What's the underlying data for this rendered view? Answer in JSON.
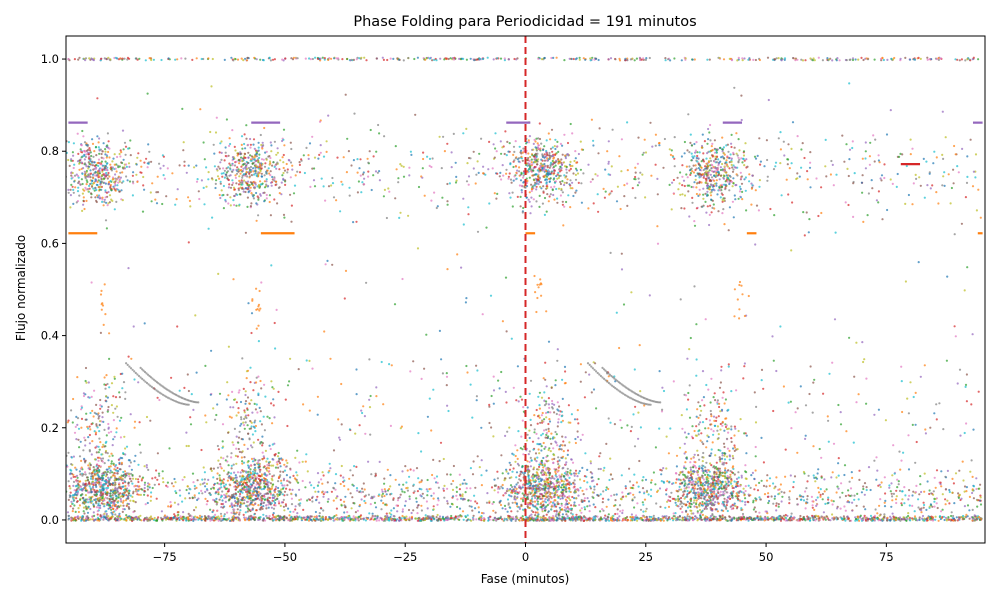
{
  "chart_data": {
    "type": "scatter",
    "title": "Phase Folding para Periodicidad = 191 minutos",
    "xlabel": "Fase (minutos)",
    "ylabel": "Flujo normalizado",
    "xlim": [
      -95.5,
      95.5
    ],
    "ylim": [
      -0.05,
      1.05
    ],
    "xticks": [
      -75,
      -50,
      -25,
      0,
      25,
      50,
      75
    ],
    "xtick_labels": [
      "−75",
      "−50",
      "−25",
      "0",
      "25",
      "50",
      "75"
    ],
    "yticks": [
      0.0,
      0.2,
      0.4,
      0.6,
      0.8,
      1.0
    ],
    "ytick_labels": [
      "0.0",
      "0.2",
      "0.4",
      "0.6",
      "0.8",
      "1.0"
    ],
    "grid": false,
    "legend": "none",
    "reference_line": {
      "x": 0,
      "color": "#d62728",
      "style": "dashed"
    },
    "series_colors": [
      "#1f77b4",
      "#ff7f0e",
      "#2ca02c",
      "#d62728",
      "#9467bd",
      "#8c564b",
      "#e377c2",
      "#7f7f7f",
      "#bcbd22",
      "#17becf"
    ],
    "clusters": [
      {
        "x": [
          -95,
          95
        ],
        "y": 1.0,
        "spread": [
          0,
          0.003
        ],
        "n": 420,
        "kind": "line"
      },
      {
        "x": [
          -95,
          95
        ],
        "y": 0.0,
        "spread": [
          0,
          0.006
        ],
        "n": 900,
        "kind": "line"
      },
      {
        "x": [
          -95,
          95
        ],
        "y": 0.005,
        "spread": [
          0,
          0.004
        ],
        "n": 700,
        "kind": "line"
      },
      {
        "center": [
          -89,
          0.755
        ],
        "sd": [
          3.5,
          0.035
        ],
        "n": 420
      },
      {
        "center": [
          -57,
          0.755
        ],
        "sd": [
          3.5,
          0.035
        ],
        "n": 420
      },
      {
        "center": [
          3,
          0.76
        ],
        "sd": [
          3.5,
          0.035
        ],
        "n": 450
      },
      {
        "center": [
          39,
          0.755
        ],
        "sd": [
          3.5,
          0.035
        ],
        "n": 420
      },
      {
        "x": [
          -95,
          95
        ],
        "center_y": 0.755,
        "sd_y": 0.045,
        "n": 700,
        "kind": "band"
      },
      {
        "center": [
          -88,
          0.07
        ],
        "sd": [
          4,
          0.035
        ],
        "n": 650
      },
      {
        "center": [
          -57,
          0.07
        ],
        "sd": [
          4,
          0.035
        ],
        "n": 600
      },
      {
        "center": [
          4,
          0.07
        ],
        "sd": [
          4,
          0.035
        ],
        "n": 650
      },
      {
        "center": [
          38,
          0.07
        ],
        "sd": [
          4,
          0.035
        ],
        "n": 600
      },
      {
        "x": [
          -95,
          95
        ],
        "center_y": 0.05,
        "sd_y": 0.03,
        "n": 1300,
        "kind": "band"
      },
      {
        "x": [
          -95,
          95
        ],
        "y_range": [
          0.02,
          0.35
        ],
        "n": 550,
        "kind": "uniform"
      },
      {
        "x": [
          -95,
          95
        ],
        "y_range": [
          0.35,
          0.95
        ],
        "n": 160,
        "kind": "uniform"
      },
      {
        "center": [
          -89,
          0.2
        ],
        "sd": [
          3,
          0.06
        ],
        "n": 150
      },
      {
        "center": [
          -57,
          0.2
        ],
        "sd": [
          3,
          0.06
        ],
        "n": 150
      },
      {
        "center": [
          4,
          0.2
        ],
        "sd": [
          3,
          0.06
        ],
        "n": 160
      },
      {
        "center": [
          39,
          0.2
        ],
        "sd": [
          3,
          0.06
        ],
        "n": 150
      }
    ],
    "segments": [
      {
        "x": [
          -95,
          -91
        ],
        "y": 0.862,
        "color": "#9467bd"
      },
      {
        "x": [
          -57,
          -51
        ],
        "y": 0.862,
        "color": "#9467bd"
      },
      {
        "x": [
          -4,
          1
        ],
        "y": 0.862,
        "color": "#9467bd"
      },
      {
        "x": [
          41,
          45
        ],
        "y": 0.862,
        "color": "#9467bd"
      },
      {
        "x": [
          93,
          95
        ],
        "y": 0.862,
        "color": "#9467bd"
      },
      {
        "x": [
          -95,
          -89
        ],
        "y": 0.622,
        "color": "#ff7f0e"
      },
      {
        "x": [
          -55,
          -48
        ],
        "y": 0.622,
        "color": "#ff7f0e"
      },
      {
        "x": [
          0,
          2
        ],
        "y": 0.622,
        "color": "#ff7f0e"
      },
      {
        "x": [
          46,
          48
        ],
        "y": 0.622,
        "color": "#ff7f0e"
      },
      {
        "x": [
          94,
          95
        ],
        "y": 0.622,
        "color": "#ff7f0e"
      },
      {
        "x": [
          78,
          82
        ],
        "y": 0.772,
        "color": "#d62728"
      }
    ],
    "arcs": [
      {
        "from": [
          -83,
          0.34
        ],
        "to": [
          -70,
          0.25
        ],
        "n": 40,
        "color": "#7f7f7f"
      },
      {
        "from": [
          -80,
          0.33
        ],
        "to": [
          -68,
          0.255
        ],
        "n": 40,
        "color": "#7f7f7f"
      },
      {
        "from": [
          13,
          0.34
        ],
        "to": [
          26,
          0.25
        ],
        "n": 40,
        "color": "#7f7f7f"
      },
      {
        "from": [
          16,
          0.33
        ],
        "to": [
          28,
          0.255
        ],
        "n": 40,
        "color": "#7f7f7f"
      }
    ],
    "orange_blobs": [
      {
        "center": [
          -88,
          0.465
        ],
        "n": 10
      },
      {
        "center": [
          -56,
          0.46
        ],
        "n": 12
      },
      {
        "center": [
          3,
          0.49
        ],
        "n": 12
      },
      {
        "center": [
          44,
          0.48
        ],
        "n": 10
      }
    ]
  }
}
